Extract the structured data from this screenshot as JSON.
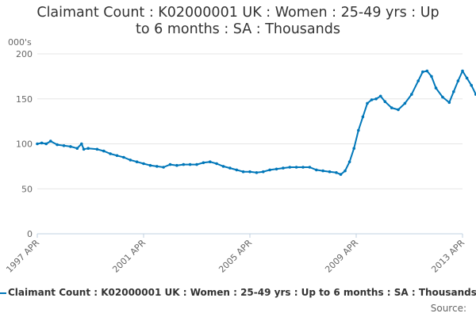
{
  "title_line1": "Claimant Count : K02000001 UK : Women : 25-49 yrs : Up",
  "title_line2": "to 6 months : SA : Thousands",
  "source_label": "Source:",
  "legend": {
    "label": "Claimant Count : K02000001 UK : Women : 25-49 yrs : Up to 6 months : SA : Thousands"
  },
  "colors": {
    "series": "#0077b9",
    "grid": "#e6e6e6",
    "axis": "#c0d0e0"
  },
  "chart_data": {
    "type": "line",
    "title": "Claimant Count : K02000001 UK : Women : 25-49 yrs : Up to 6 months : SA : Thousands",
    "ylabel": "000's",
    "xlabel": "",
    "ylim": [
      0,
      200
    ],
    "yticks": [
      0,
      50,
      100,
      150,
      200
    ],
    "xticks": [
      "1997 APR",
      "2001 APR",
      "2005 APR",
      "2009 APR",
      "2013 APR"
    ],
    "legend_position": "bottom",
    "grid": true,
    "series": [
      {
        "name": "Claimant Count : K02000001 UK : Women : 25-49 yrs : Up to 6 months : SA : Thousands",
        "points": [
          [
            "1997-04",
            100
          ],
          [
            "1997-06",
            101
          ],
          [
            "1997-08",
            100
          ],
          [
            "1997-10",
            103
          ],
          [
            "1998-01",
            99
          ],
          [
            "1998-04",
            98
          ],
          [
            "1998-07",
            97
          ],
          [
            "1998-10",
            95
          ],
          [
            "1998-12",
            100
          ],
          [
            "1999-01",
            94
          ],
          [
            "1999-03",
            95
          ],
          [
            "1999-07",
            94
          ],
          [
            "1999-10",
            92
          ],
          [
            "2000-01",
            89
          ],
          [
            "2000-04",
            87
          ],
          [
            "2000-07",
            85
          ],
          [
            "2000-10",
            82
          ],
          [
            "2001-01",
            80
          ],
          [
            "2001-04",
            78
          ],
          [
            "2001-07",
            76
          ],
          [
            "2001-10",
            75
          ],
          [
            "2002-01",
            74
          ],
          [
            "2002-04",
            77
          ],
          [
            "2002-07",
            76
          ],
          [
            "2002-10",
            77
          ],
          [
            "2003-01",
            77
          ],
          [
            "2003-04",
            77
          ],
          [
            "2003-07",
            79
          ],
          [
            "2003-10",
            80
          ],
          [
            "2004-01",
            78
          ],
          [
            "2004-04",
            75
          ],
          [
            "2004-07",
            73
          ],
          [
            "2004-10",
            71
          ],
          [
            "2005-01",
            69
          ],
          [
            "2005-04",
            69
          ],
          [
            "2005-07",
            68
          ],
          [
            "2005-10",
            69
          ],
          [
            "2006-01",
            71
          ],
          [
            "2006-04",
            72
          ],
          [
            "2006-07",
            73
          ],
          [
            "2006-10",
            74
          ],
          [
            "2007-01",
            74
          ],
          [
            "2007-04",
            74
          ],
          [
            "2007-07",
            74
          ],
          [
            "2007-10",
            71
          ],
          [
            "2008-01",
            70
          ],
          [
            "2008-04",
            69
          ],
          [
            "2008-07",
            68
          ],
          [
            "2008-09",
            66
          ],
          [
            "2008-11",
            70
          ],
          [
            "2009-01",
            80
          ],
          [
            "2009-03",
            95
          ],
          [
            "2009-05",
            115
          ],
          [
            "2009-07",
            130
          ],
          [
            "2009-09",
            145
          ],
          [
            "2009-11",
            149
          ],
          [
            "2010-01",
            150
          ],
          [
            "2010-03",
            153
          ],
          [
            "2010-05",
            147
          ],
          [
            "2010-08",
            140
          ],
          [
            "2010-11",
            138
          ],
          [
            "2011-02",
            145
          ],
          [
            "2011-05",
            155
          ],
          [
            "2011-08",
            170
          ],
          [
            "2011-10",
            180
          ],
          [
            "2011-12",
            181
          ],
          [
            "2012-02",
            175
          ],
          [
            "2012-04",
            162
          ],
          [
            "2012-07",
            152
          ],
          [
            "2012-10",
            146
          ],
          [
            "2012-12",
            158
          ],
          [
            "2013-02",
            170
          ],
          [
            "2013-04",
            181
          ],
          [
            "2013-06",
            173
          ],
          [
            "2013-08",
            165
          ],
          [
            "2013-10",
            155
          ]
        ]
      }
    ]
  }
}
